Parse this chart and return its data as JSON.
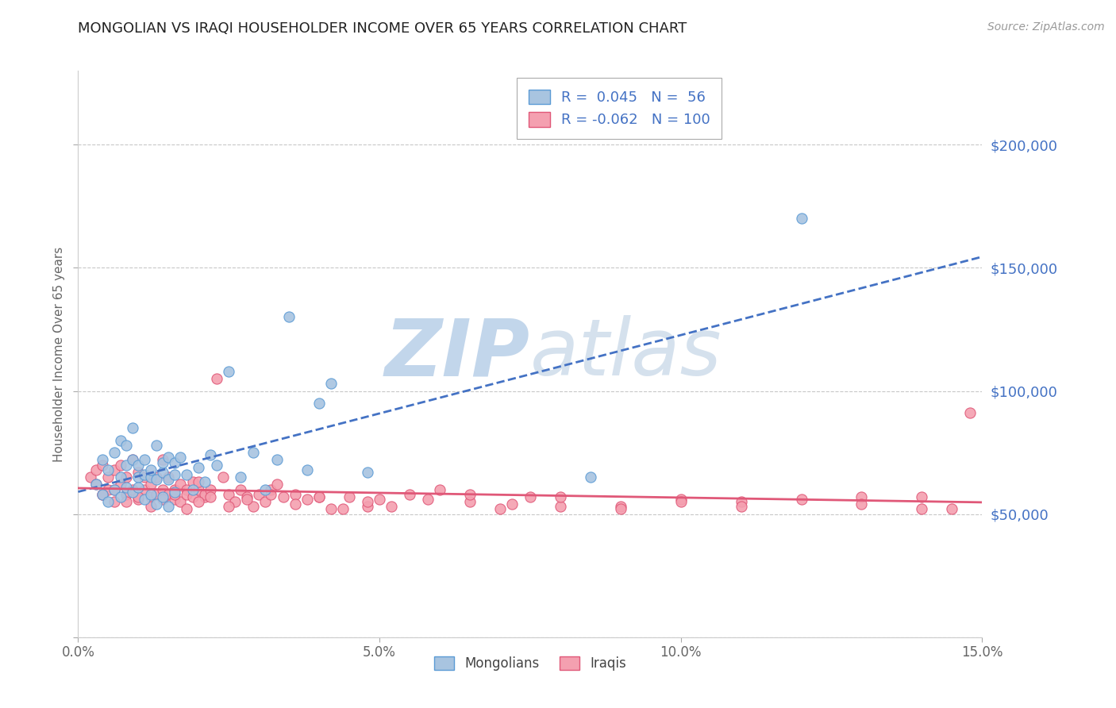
{
  "title": "MONGOLIAN VS IRAQI HOUSEHOLDER INCOME OVER 65 YEARS CORRELATION CHART",
  "source_text": "Source: ZipAtlas.com",
  "ylabel": "Householder Income Over 65 years",
  "xlim": [
    0.0,
    0.15
  ],
  "ylim": [
    0,
    230000
  ],
  "yticks": [
    0,
    50000,
    100000,
    150000,
    200000
  ],
  "ytick_labels": [
    "",
    "$50,000",
    "$100,000",
    "$150,000",
    "$200,000"
  ],
  "xticks": [
    0.0,
    0.05,
    0.1,
    0.15
  ],
  "xtick_labels": [
    "0.0%",
    "5.0%",
    "10.0%",
    "15.0%"
  ],
  "mongolian_R": 0.045,
  "mongolian_N": 56,
  "iraqi_R": -0.062,
  "iraqi_N": 100,
  "mongolian_color": "#a8c4e0",
  "mongolian_edge": "#5b9bd5",
  "iraqi_color": "#f4a0b0",
  "iraqi_edge": "#e05878",
  "trend_mongolian_color": "#4472c4",
  "trend_iraqi_color": "#e05878",
  "grid_color": "#c8c8c8",
  "background_color": "#ffffff",
  "watermark": "ZIPatlas",
  "watermark_color": "#cdd8e8",
  "mongolian_x": [
    0.003,
    0.004,
    0.005,
    0.006,
    0.007,
    0.007,
    0.008,
    0.008,
    0.009,
    0.009,
    0.01,
    0.01,
    0.011,
    0.011,
    0.012,
    0.012,
    0.013,
    0.013,
    0.014,
    0.014,
    0.015,
    0.015,
    0.016,
    0.016,
    0.017,
    0.018,
    0.019,
    0.02,
    0.021,
    0.022,
    0.023,
    0.025,
    0.027,
    0.029,
    0.031,
    0.033,
    0.035,
    0.038,
    0.04,
    0.042,
    0.004,
    0.005,
    0.006,
    0.007,
    0.008,
    0.009,
    0.01,
    0.011,
    0.012,
    0.013,
    0.014,
    0.015,
    0.016,
    0.048,
    0.085,
    0.12
  ],
  "mongolian_y": [
    62000,
    72000,
    68000,
    75000,
    80000,
    65000,
    70000,
    78000,
    85000,
    72000,
    70000,
    65000,
    72000,
    66000,
    65000,
    68000,
    78000,
    64000,
    67000,
    71000,
    64000,
    73000,
    71000,
    66000,
    73000,
    66000,
    60000,
    69000,
    63000,
    74000,
    70000,
    108000,
    65000,
    75000,
    60000,
    72000,
    130000,
    68000,
    95000,
    103000,
    58000,
    55000,
    60000,
    57000,
    61000,
    59000,
    61000,
    56000,
    58000,
    54000,
    57000,
    53000,
    59000,
    67000,
    65000,
    170000
  ],
  "iraqi_x": [
    0.002,
    0.003,
    0.003,
    0.004,
    0.004,
    0.005,
    0.005,
    0.006,
    0.006,
    0.007,
    0.007,
    0.008,
    0.008,
    0.009,
    0.009,
    0.01,
    0.01,
    0.011,
    0.011,
    0.012,
    0.012,
    0.013,
    0.013,
    0.014,
    0.014,
    0.015,
    0.015,
    0.016,
    0.016,
    0.017,
    0.017,
    0.018,
    0.018,
    0.019,
    0.019,
    0.02,
    0.02,
    0.021,
    0.021,
    0.022,
    0.023,
    0.024,
    0.025,
    0.026,
    0.027,
    0.028,
    0.029,
    0.03,
    0.031,
    0.032,
    0.033,
    0.034,
    0.036,
    0.038,
    0.04,
    0.042,
    0.045,
    0.048,
    0.05,
    0.055,
    0.06,
    0.065,
    0.07,
    0.075,
    0.08,
    0.09,
    0.1,
    0.11,
    0.13,
    0.14,
    0.004,
    0.006,
    0.008,
    0.01,
    0.012,
    0.014,
    0.016,
    0.018,
    0.02,
    0.022,
    0.025,
    0.028,
    0.032,
    0.036,
    0.04,
    0.044,
    0.048,
    0.052,
    0.058,
    0.065,
    0.072,
    0.08,
    0.09,
    0.1,
    0.11,
    0.12,
    0.13,
    0.14,
    0.145,
    0.148
  ],
  "iraqi_y": [
    65000,
    62000,
    68000,
    58000,
    70000,
    65000,
    60000,
    68000,
    55000,
    70000,
    62000,
    65000,
    58000,
    72000,
    60000,
    67000,
    56000,
    60000,
    65000,
    57000,
    62000,
    65000,
    58000,
    72000,
    60000,
    58000,
    65000,
    60000,
    56000,
    62000,
    55000,
    60000,
    58000,
    63000,
    57000,
    60000,
    63000,
    57000,
    58000,
    60000,
    105000,
    65000,
    58000,
    55000,
    60000,
    57000,
    53000,
    58000,
    55000,
    60000,
    62000,
    57000,
    58000,
    56000,
    57000,
    52000,
    57000,
    53000,
    56000,
    58000,
    60000,
    55000,
    52000,
    57000,
    53000,
    53000,
    56000,
    55000,
    57000,
    52000,
    58000,
    60000,
    55000,
    57000,
    53000,
    56000,
    58000,
    52000,
    55000,
    57000,
    53000,
    56000,
    58000,
    54000,
    57000,
    52000,
    55000,
    53000,
    56000,
    58000,
    54000,
    57000,
    52000,
    55000,
    53000,
    56000,
    54000,
    57000,
    52000,
    91000
  ]
}
